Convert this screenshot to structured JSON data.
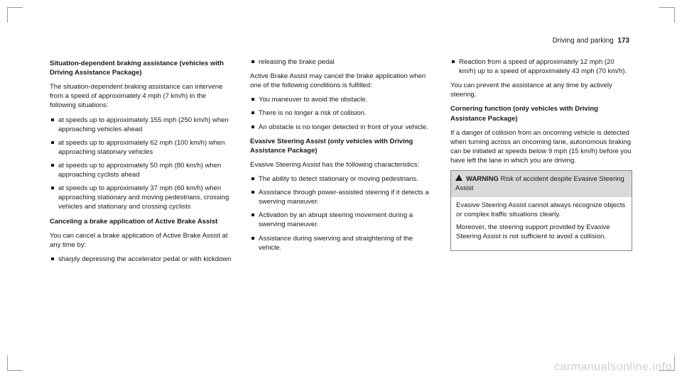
{
  "header": {
    "section": "Driving and parking",
    "page": "173"
  },
  "col1": {
    "h1": "Situation-dependent braking assistance (vehicles with Driving Assistance Package)",
    "p1": "The situation-dependent braking assistance can intervene from a speed of approximately 4 mph (7 km/h) in the following situations:",
    "l1": "at speeds up to approximately 155 mph (250 km/h) when approaching vehicles ahead",
    "l2": "at speeds up to approximately 62 mph (100 km/h) when approaching stationary vehicles",
    "l3": "at speeds up to approximately 50 mph (80 km/h) when approaching cyclists ahead",
    "l4": "at speeds up to approximately 37 mph (60 km/h) when approaching stationary and moving pedestrians, crossing vehicles and stationary and crossing cyclists",
    "h2": "Canceling a brake application of Active Brake Assist",
    "p2": "You can cancel a brake application of Active Brake Assist at any time by:",
    "l5": "sharply depressing the accelerator pedal or with kickdown"
  },
  "col2": {
    "l1": "releasing the brake pedal",
    "p1": "Active Brake Assist may cancel the brake application when one of the following conditions is fulfilled:",
    "l2": "You maneuver to avoid the obstacle.",
    "l3": "There is no longer a risk of collision.",
    "l4": "An obstacle is no longer detected in front of your vehicle.",
    "h1": "Evasive Steering Assist (only vehicles with Driving Assistance Package)",
    "p2": "Evasive Steering Assist has the following characteristics:",
    "l5": "The ability to detect stationary or moving pedestrians.",
    "l6": "Assistance through power-assisted steering if it detects a swerving maneuver.",
    "l7": "Activation by an abrupt steering movement during a swerving maneuver.",
    "l8": "Assistance during swerving and straightening of the vehicle."
  },
  "col3": {
    "l1": "Reaction from a speed of approximately 12 mph (20 km/h) up to a speed of approximately 43 mph (70 km/h).",
    "p1": "You can prevent the assistance at any time by actively steering.",
    "h1": "Cornering function (only vehicles with Driving Assistance Package)",
    "p2": "If a danger of collision from an oncoming vehicle is detected when turning across an oncoming lane, autonomous braking can be initiated at speeds below 9 mph (15 km/h) before you have left the lane in which you are driving.",
    "warn_title": "WARNING",
    "warn_sub": " Risk of accident despite Evasive Steering Assist",
    "warn_p1": "Evasive Steering Assist cannot always recognize objects or complex traffic situations clearly.",
    "warn_p2": "Moreover, the steering support provided by Evasive Steering Assist is not sufficient to avoid a collision."
  },
  "watermark": "carmanualsonline.info"
}
